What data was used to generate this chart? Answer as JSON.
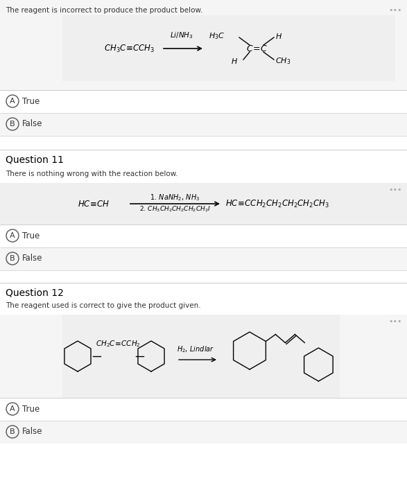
{
  "white": "#ffffff",
  "light_gray": "#efefef",
  "light_gray2": "#f5f5f5",
  "border_color": "#cccccc",
  "text_color": "#000000",
  "gray_text": "#aaaaaa",
  "q10_prompt": "The reagent is incorrect to produce the product below.",
  "q11_label": "Question 11",
  "q11_prompt": "There is nothing wrong with the reaction below.",
  "q12_label": "Question 12",
  "q12_prompt": "The reagent used is correct to give the product given.",
  "true_label": "True",
  "false_label": "False",
  "dots": "•••",
  "answer_A": "A",
  "answer_B": "B",
  "section_heights": [
    130,
    33,
    33,
    12,
    20,
    14,
    110,
    35,
    35,
    12,
    20,
    14,
    115,
    110,
    35,
    35
  ]
}
